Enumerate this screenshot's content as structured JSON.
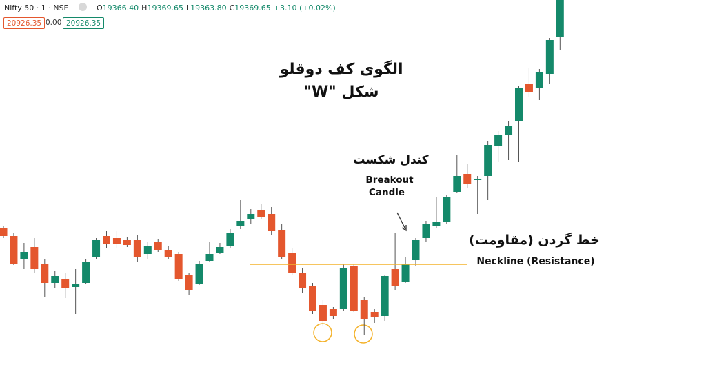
{
  "header": {
    "symbol": "Nifty 50 · 1 · NSE",
    "ohlc": [
      {
        "key": "O",
        "value": "19366.40"
      },
      {
        "key": "H",
        "value": "19369.65"
      },
      {
        "key": "L",
        "value": "19363.80"
      },
      {
        "key": "C",
        "value": "19369.65"
      }
    ],
    "change": "+3.10 (+0.02%)",
    "labels": [
      "20926.35",
      "0.00",
      "20926.35"
    ]
  },
  "chart_data": {
    "type": "candlestick",
    "title": [
      "الگوی کف دوقلو",
      "شکل \"W\""
    ],
    "up_color": "#14896a",
    "down_color": "#e4572e",
    "ylim": [
      19000,
      19555
    ],
    "open": [
      19225,
      19213,
      19179,
      19197,
      19173,
      19145,
      19150,
      19139,
      19145,
      19182,
      19213,
      19210,
      19207,
      19207,
      19187,
      19205,
      19193,
      19187,
      19157,
      19143,
      19177,
      19189,
      19199,
      19227,
      19237,
      19250,
      19245,
      19222,
      19189,
      19160,
      19140,
      19113,
      19107,
      19107,
      19169,
      19120,
      19103,
      19097,
      19165,
      19147,
      19178,
      19210,
      19227,
      19233,
      19277,
      19303,
      19294,
      19300,
      19343,
      19360,
      19380,
      19433,
      19428,
      19448,
      19502
    ],
    "high": [
      19227,
      19217,
      19203,
      19210,
      19180,
      19162,
      19160,
      19165,
      19180,
      19210,
      19220,
      19220,
      19212,
      19215,
      19205,
      19209,
      19198,
      19190,
      19160,
      19177,
      19205,
      19203,
      19223,
      19265,
      19252,
      19260,
      19255,
      19230,
      19195,
      19167,
      19145,
      19120,
      19110,
      19173,
      19172,
      19125,
      19107,
      19157,
      19217,
      19183,
      19210,
      19235,
      19270,
      19273,
      19330,
      19317,
      19300,
      19350,
      19365,
      19380,
      19430,
      19457,
      19455,
      19500,
      19555
    ],
    "low": [
      19210,
      19171,
      19165,
      19160,
      19125,
      19137,
      19123,
      19100,
      19143,
      19180,
      19195,
      19195,
      19197,
      19175,
      19180,
      19190,
      19180,
      19148,
      19127,
      19142,
      19175,
      19187,
      19195,
      19223,
      19230,
      19237,
      19215,
      19180,
      19157,
      19130,
      19100,
      19083,
      19093,
      19105,
      19103,
      19070,
      19087,
      19090,
      19135,
      19145,
      19170,
      19205,
      19225,
      19230,
      19275,
      19283,
      19245,
      19265,
      19320,
      19323,
      19320,
      19415,
      19410,
      19433,
      19483
    ],
    "close": [
      19213,
      19173,
      19190,
      19165,
      19145,
      19155,
      19137,
      19143,
      19175,
      19207,
      19201,
      19202,
      19200,
      19183,
      19199,
      19193,
      19183,
      19150,
      19135,
      19173,
      19187,
      19197,
      19217,
      19235,
      19245,
      19240,
      19220,
      19183,
      19160,
      19137,
      19105,
      19090,
      19097,
      19167,
      19105,
      19093,
      19095,
      19155,
      19140,
      19173,
      19207,
      19230,
      19233,
      19270,
      19300,
      19289,
      19296,
      19345,
      19360,
      19373,
      19427,
      19422,
      19450,
      19497,
      19555
    ],
    "neckline": {
      "value": 19172,
      "label": "Neckline (Resistance)",
      "label_fa": "خط گردن (مقاومت)",
      "color": "#f4b22a"
    },
    "breakout": {
      "label_fa": "کندل شکست",
      "label": [
        "Breakout",
        "Candle"
      ]
    }
  }
}
